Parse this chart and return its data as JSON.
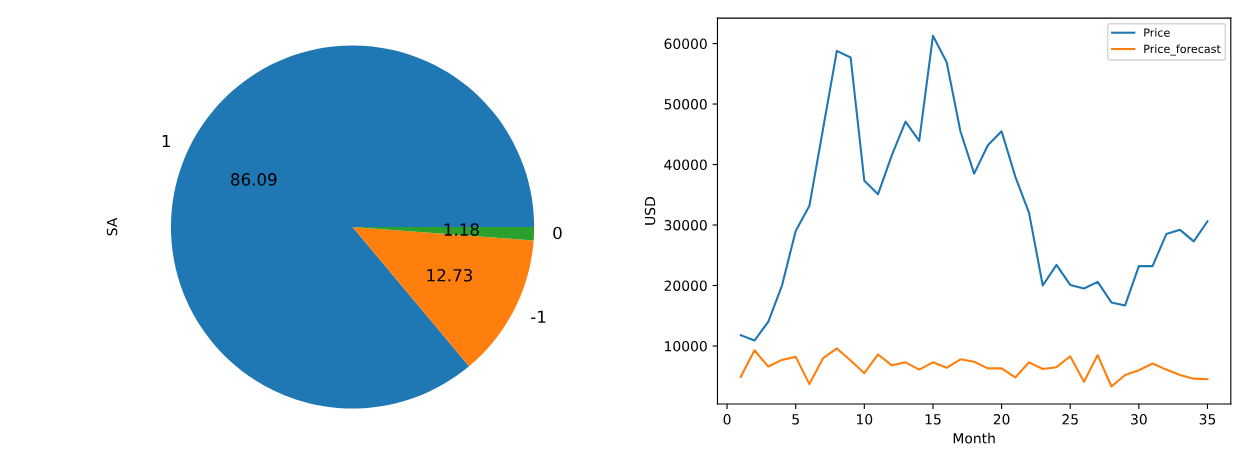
{
  "chart_data": [
    {
      "type": "pie",
      "ylabel": "SA",
      "categories": [
        "1",
        "-1",
        "0"
      ],
      "values": [
        86.09,
        12.73,
        1.18
      ],
      "colors": [
        "#1f77b4",
        "#ff7f0e",
        "#2ca02c"
      ],
      "data_labels": true
    },
    {
      "type": "line",
      "xlabel": "Month",
      "ylabel": "USD",
      "xlim": [
        -0.7,
        36.7
      ],
      "ylim": [
        400,
        64200
      ],
      "xticks": [
        0,
        5,
        10,
        15,
        20,
        25,
        30,
        35
      ],
      "yticks": [
        10000,
        20000,
        30000,
        40000,
        50000,
        60000
      ],
      "legend": "upper right",
      "grid": false,
      "x": [
        1,
        2,
        3,
        4,
        5,
        6,
        7,
        8,
        9,
        10,
        11,
        12,
        13,
        14,
        15,
        16,
        17,
        18,
        19,
        20,
        21,
        22,
        23,
        24,
        25,
        26,
        27,
        28,
        29,
        30,
        31,
        32,
        33,
        34,
        35
      ],
      "series": [
        {
          "name": "Price",
          "color": "#1f77b4",
          "values": [
            11800,
            10900,
            14000,
            20000,
            29000,
            33200,
            46000,
            58800,
            57700,
            37300,
            35100,
            41500,
            47100,
            43900,
            61300,
            56900,
            45500,
            38500,
            43200,
            45500,
            38000,
            32000,
            20000,
            23400,
            20100,
            19500,
            20600,
            17200,
            16700,
            23200,
            23200,
            28500,
            29200,
            27300,
            30600
          ]
        },
        {
          "name": "Price_forecast",
          "color": "#ff7f0e",
          "values": [
            4900,
            9300,
            6600,
            7700,
            8200,
            3700,
            8000,
            9600,
            7600,
            5500,
            8600,
            6800,
            7300,
            6100,
            7300,
            6400,
            7800,
            7400,
            6300,
            6300,
            4800,
            7300,
            6200,
            6500,
            8300,
            4100,
            8500,
            3300,
            5200,
            6000,
            7100,
            6100,
            5200,
            4600,
            4500
          ]
        }
      ]
    }
  ]
}
